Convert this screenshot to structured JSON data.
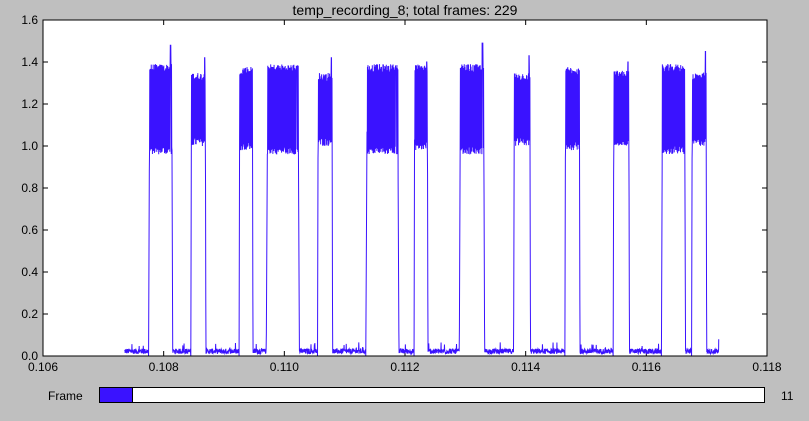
{
  "chart_data": {
    "type": "line",
    "title": "temp_recording_8; total frames: 229",
    "xlabel": "",
    "ylabel": "",
    "xlim": [
      0.106,
      0.118
    ],
    "ylim": [
      0.0,
      1.6
    ],
    "x_ticks": [
      "0.106",
      "0.108",
      "0.110",
      "0.112",
      "0.114",
      "0.116",
      "0.118"
    ],
    "y_ticks": [
      "0.0",
      "0.2",
      "0.4",
      "0.6",
      "0.8",
      "1.0",
      "1.2",
      "1.4",
      "1.6"
    ],
    "grid": false,
    "line_color": "#3a12ff",
    "signal_x_range": [
      0.10735,
      0.1172
    ],
    "pulses": [
      {
        "start": 0.10775,
        "end": 0.10815,
        "low": 0.98,
        "high": 1.37,
        "spike": 1.48
      },
      {
        "start": 0.10845,
        "end": 0.1087,
        "low": 1.02,
        "high": 1.33,
        "spike": 1.42
      },
      {
        "start": 0.10925,
        "end": 0.10948,
        "low": 1.0,
        "high": 1.36,
        "spike": 1.36
      },
      {
        "start": 0.1097,
        "end": 0.11025,
        "low": 0.98,
        "high": 1.37,
        "spike": 1.38
      },
      {
        "start": 0.11055,
        "end": 0.1108,
        "low": 1.02,
        "high": 1.33,
        "spike": 1.42
      },
      {
        "start": 0.11135,
        "end": 0.1119,
        "low": 0.98,
        "high": 1.37,
        "spike": 1.37
      },
      {
        "start": 0.11215,
        "end": 0.11238,
        "low": 1.0,
        "high": 1.37,
        "spike": 1.4
      },
      {
        "start": 0.1129,
        "end": 0.11332,
        "low": 0.98,
        "high": 1.37,
        "spike": 1.49
      },
      {
        "start": 0.1138,
        "end": 0.11408,
        "low": 1.02,
        "high": 1.33,
        "spike": 1.43
      },
      {
        "start": 0.11465,
        "end": 0.1149,
        "low": 1.0,
        "high": 1.36,
        "spike": 1.36
      },
      {
        "start": 0.11545,
        "end": 0.11572,
        "low": 1.02,
        "high": 1.34,
        "spike": 1.4
      },
      {
        "start": 0.11625,
        "end": 0.11665,
        "low": 0.98,
        "high": 1.37,
        "spike": 1.37
      },
      {
        "start": 0.11675,
        "end": 0.117,
        "low": 1.02,
        "high": 1.33,
        "spike": 1.45
      }
    ]
  },
  "slider": {
    "label": "Frame",
    "value": "11",
    "fraction": 0.05
  }
}
